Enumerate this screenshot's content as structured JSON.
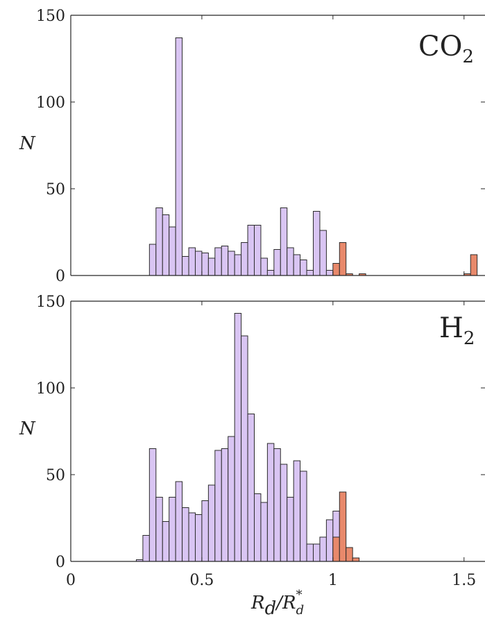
{
  "colors": {
    "under_threshold": "#d9c5f3",
    "over_threshold": "#e8896b",
    "bar_edge": "#2b2b2b",
    "axis": "#262626"
  },
  "chart_data": [
    {
      "type": "bar",
      "panel": "top",
      "gas_label": "CO",
      "gas_label_sub": "2",
      "ylabel": "N",
      "xlabel": "",
      "xlim": [
        0,
        1.58
      ],
      "ylim": [
        0,
        150
      ],
      "yticks": [
        "0",
        "50",
        "100",
        "150"
      ],
      "xticks": [],
      "bin_width": 0.025,
      "bins": [
        {
          "x": 0.3,
          "value": 18,
          "group": "under"
        },
        {
          "x": 0.325,
          "value": 39,
          "group": "under"
        },
        {
          "x": 0.35,
          "value": 35,
          "group": "under"
        },
        {
          "x": 0.375,
          "value": 28,
          "group": "under"
        },
        {
          "x": 0.4,
          "value": 137,
          "group": "under"
        },
        {
          "x": 0.425,
          "value": 11,
          "group": "under"
        },
        {
          "x": 0.45,
          "value": 16,
          "group": "under"
        },
        {
          "x": 0.475,
          "value": 14,
          "group": "under"
        },
        {
          "x": 0.5,
          "value": 13,
          "group": "under"
        },
        {
          "x": 0.525,
          "value": 10,
          "group": "under"
        },
        {
          "x": 0.55,
          "value": 16,
          "group": "under"
        },
        {
          "x": 0.575,
          "value": 17,
          "group": "under"
        },
        {
          "x": 0.6,
          "value": 14,
          "group": "under"
        },
        {
          "x": 0.625,
          "value": 12,
          "group": "under"
        },
        {
          "x": 0.65,
          "value": 19,
          "group": "under"
        },
        {
          "x": 0.675,
          "value": 29,
          "group": "under"
        },
        {
          "x": 0.7,
          "value": 29,
          "group": "under"
        },
        {
          "x": 0.725,
          "value": 10,
          "group": "under"
        },
        {
          "x": 0.75,
          "value": 3,
          "group": "under"
        },
        {
          "x": 0.775,
          "value": 15,
          "group": "under"
        },
        {
          "x": 0.8,
          "value": 39,
          "group": "under"
        },
        {
          "x": 0.825,
          "value": 16,
          "group": "under"
        },
        {
          "x": 0.85,
          "value": 12,
          "group": "under"
        },
        {
          "x": 0.875,
          "value": 9,
          "group": "under"
        },
        {
          "x": 0.9,
          "value": 3,
          "group": "under"
        },
        {
          "x": 0.925,
          "value": 37,
          "group": "under"
        },
        {
          "x": 0.95,
          "value": 26,
          "group": "under"
        },
        {
          "x": 0.975,
          "value": 3,
          "group": "under"
        },
        {
          "x": 1.0,
          "value": 7,
          "group": "over"
        },
        {
          "x": 1.025,
          "value": 19,
          "group": "over"
        },
        {
          "x": 1.05,
          "value": 1,
          "group": "over"
        },
        {
          "x": 1.1,
          "value": 1,
          "group": "over"
        },
        {
          "x": 1.5,
          "value": 1,
          "group": "over"
        },
        {
          "x": 1.525,
          "value": 12,
          "group": "over"
        }
      ]
    },
    {
      "type": "bar",
      "panel": "bottom",
      "gas_label": "H",
      "gas_label_sub": "2",
      "ylabel": "N",
      "xlabel": "R_d/R_d^*",
      "xlabel_main": "R",
      "xlabel_sub": "d",
      "xlabel_slash": "/R",
      "xlabel_sup": "*",
      "xlabel_sub2": "d",
      "xlim": [
        0,
        1.58
      ],
      "ylim": [
        0,
        150
      ],
      "yticks": [
        "0",
        "50",
        "100",
        "150"
      ],
      "xticks": [
        "0",
        "0.5",
        "1",
        "1.5"
      ],
      "bin_width": 0.025,
      "bins": [
        {
          "x": 0.25,
          "value": 1,
          "group": "under"
        },
        {
          "x": 0.275,
          "value": 15,
          "group": "under"
        },
        {
          "x": 0.3,
          "value": 65,
          "group": "under"
        },
        {
          "x": 0.325,
          "value": 37,
          "group": "under"
        },
        {
          "x": 0.35,
          "value": 23,
          "group": "under"
        },
        {
          "x": 0.375,
          "value": 37,
          "group": "under"
        },
        {
          "x": 0.4,
          "value": 46,
          "group": "under"
        },
        {
          "x": 0.425,
          "value": 31,
          "group": "under"
        },
        {
          "x": 0.45,
          "value": 28,
          "group": "under"
        },
        {
          "x": 0.475,
          "value": 27,
          "group": "under"
        },
        {
          "x": 0.5,
          "value": 35,
          "group": "under"
        },
        {
          "x": 0.525,
          "value": 44,
          "group": "under"
        },
        {
          "x": 0.55,
          "value": 64,
          "group": "under"
        },
        {
          "x": 0.575,
          "value": 65,
          "group": "under"
        },
        {
          "x": 0.6,
          "value": 72,
          "group": "under"
        },
        {
          "x": 0.625,
          "value": 143,
          "group": "under"
        },
        {
          "x": 0.65,
          "value": 130,
          "group": "under"
        },
        {
          "x": 0.675,
          "value": 85,
          "group": "under"
        },
        {
          "x": 0.7,
          "value": 39,
          "group": "under"
        },
        {
          "x": 0.725,
          "value": 34,
          "group": "under"
        },
        {
          "x": 0.75,
          "value": 68,
          "group": "under"
        },
        {
          "x": 0.775,
          "value": 65,
          "group": "under"
        },
        {
          "x": 0.8,
          "value": 56,
          "group": "under"
        },
        {
          "x": 0.825,
          "value": 37,
          "group": "under"
        },
        {
          "x": 0.85,
          "value": 58,
          "group": "under"
        },
        {
          "x": 0.875,
          "value": 52,
          "group": "under"
        },
        {
          "x": 0.9,
          "value": 10,
          "group": "under"
        },
        {
          "x": 0.925,
          "value": 10,
          "group": "under"
        },
        {
          "x": 0.95,
          "value": 14,
          "group": "under"
        },
        {
          "x": 0.975,
          "value": 24,
          "group": "under"
        },
        {
          "x": 1.0,
          "value": 29,
          "group": "under"
        },
        {
          "x": 1.0,
          "value": 14,
          "group": "over"
        },
        {
          "x": 1.025,
          "value": 40,
          "group": "over"
        },
        {
          "x": 1.05,
          "value": 8,
          "group": "over"
        },
        {
          "x": 1.075,
          "value": 2,
          "group": "over"
        }
      ]
    }
  ]
}
